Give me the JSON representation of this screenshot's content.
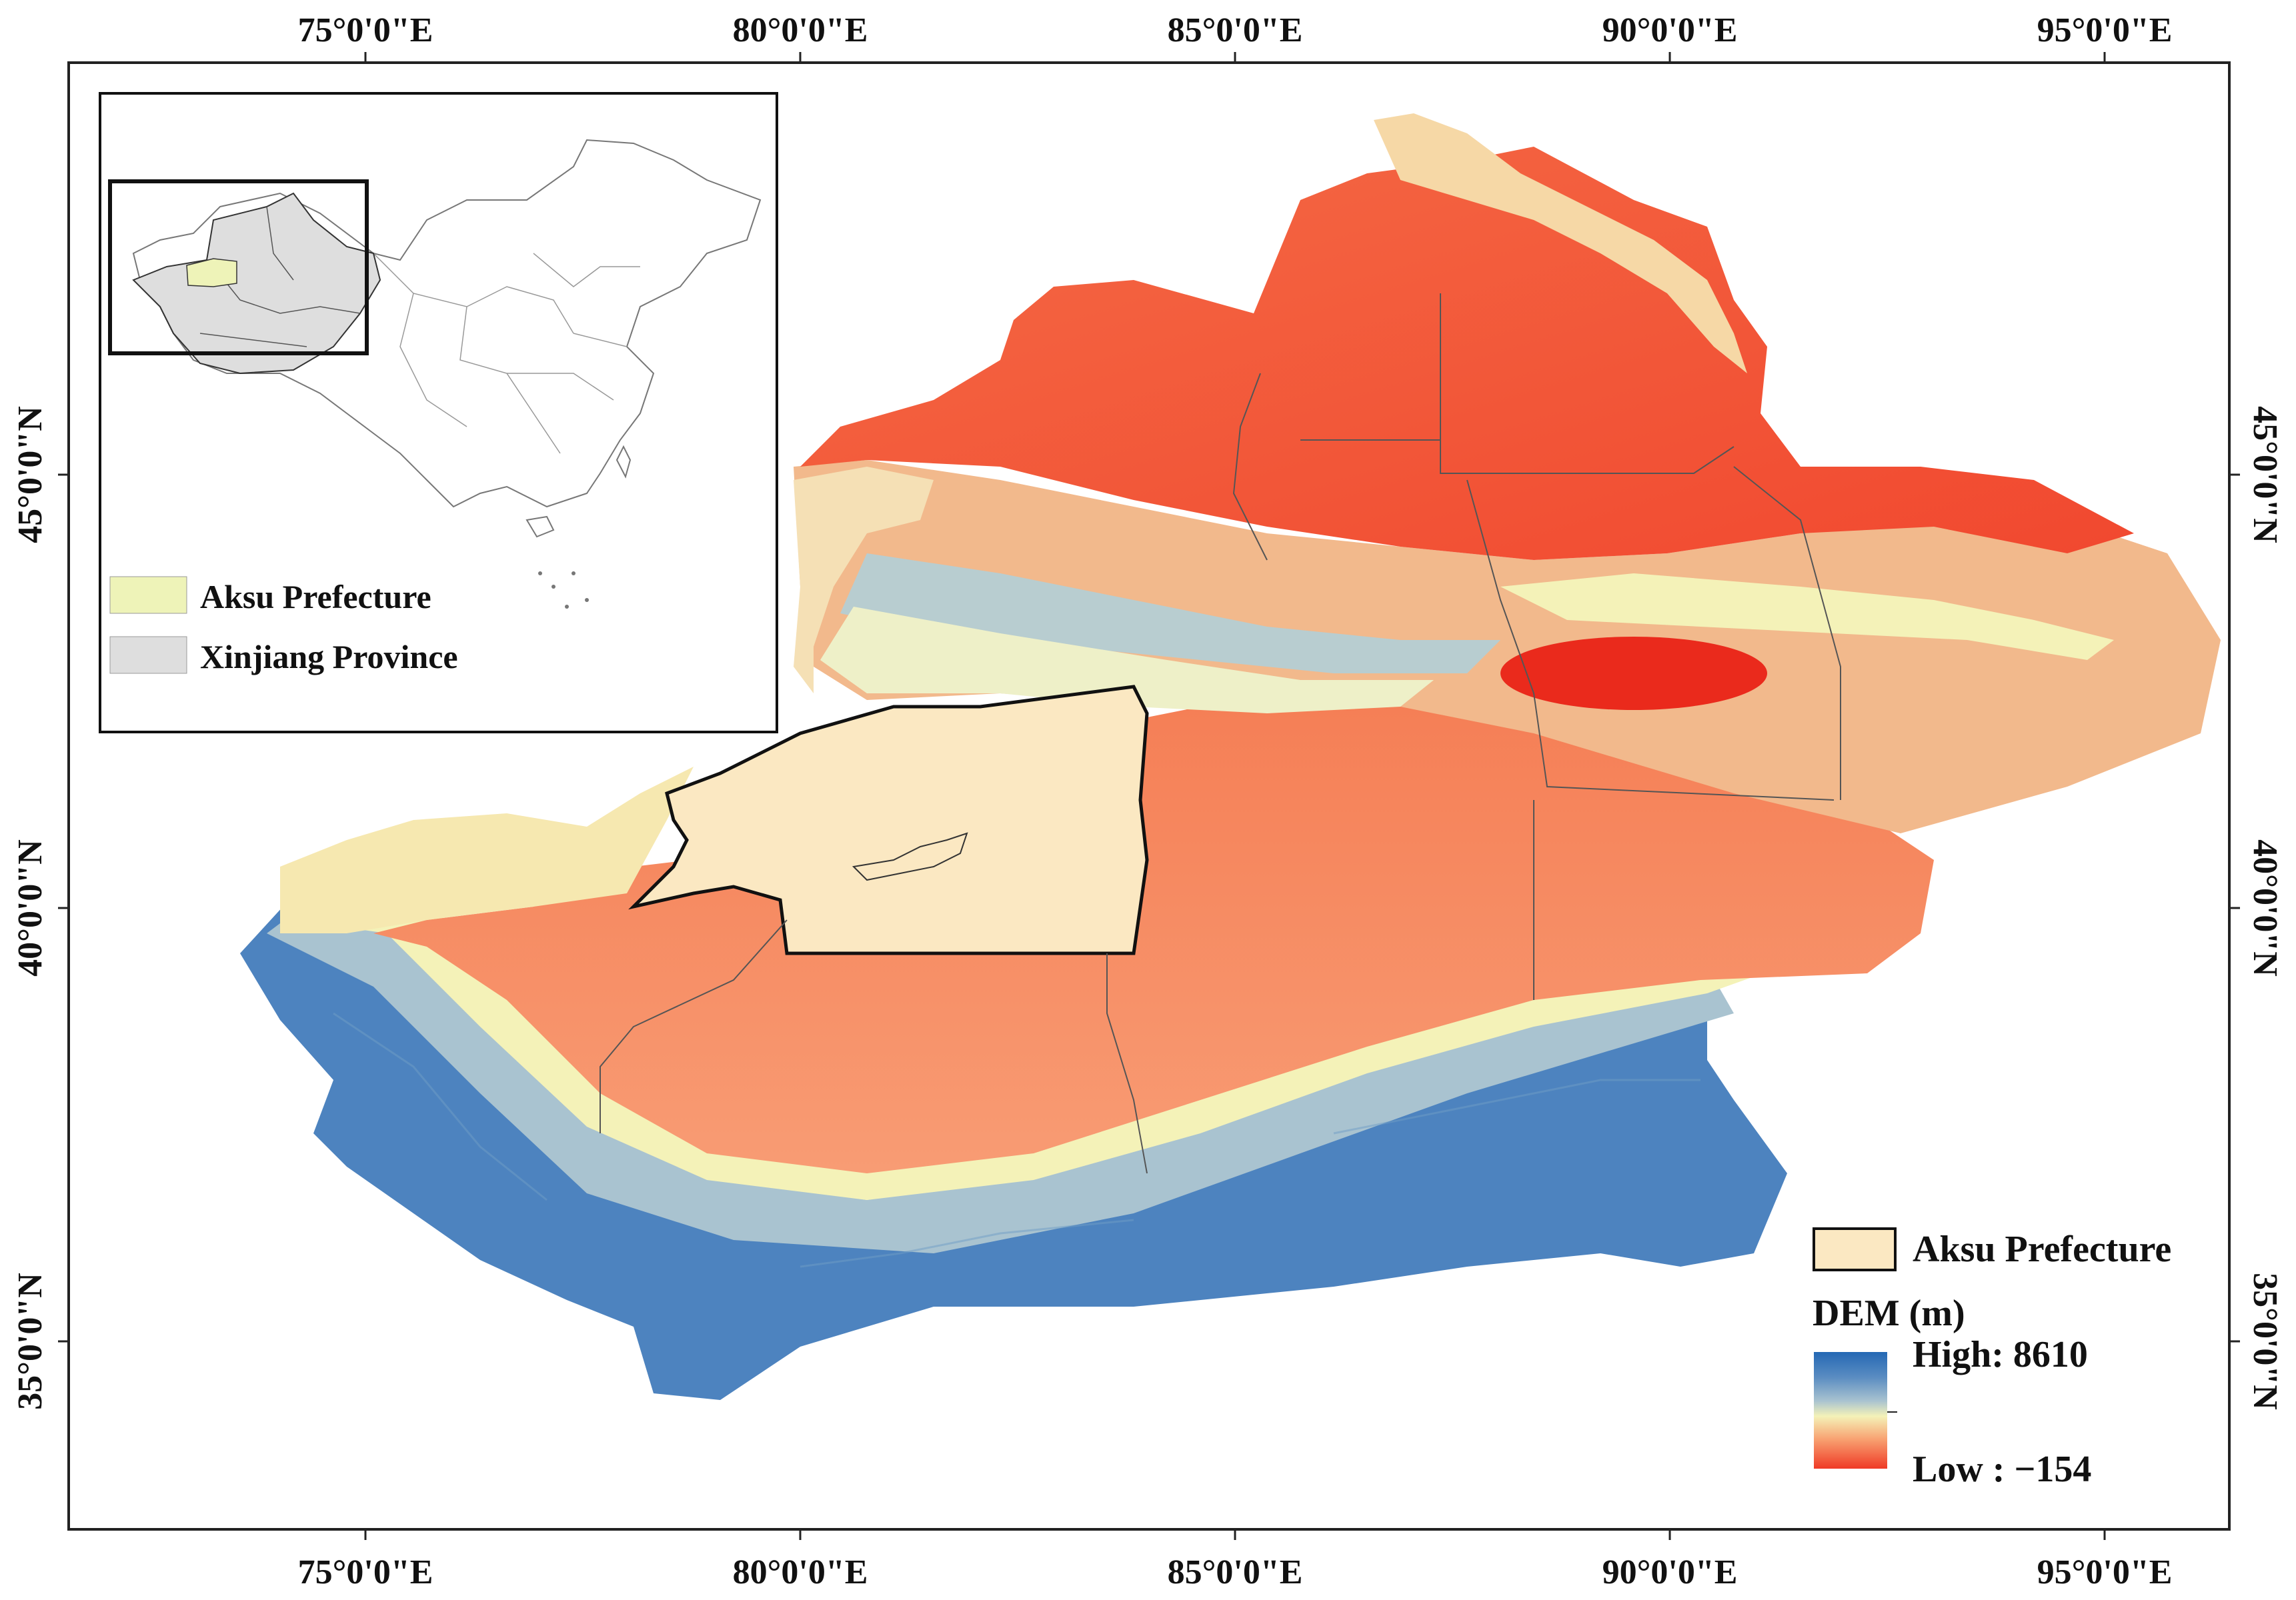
{
  "graticule": {
    "top_labels": [
      "75°0'0\"E",
      "80°0'0\"E",
      "85°0'0\"E",
      "90°0'0\"E",
      "95°0'0\"E"
    ],
    "bottom_labels": [
      "75°0'0\"E",
      "80°0'0\"E",
      "85°0'0\"E",
      "90°0'0\"E",
      "95°0'0\"E"
    ],
    "left_labels": [
      "45°0'0\"N",
      "40°0'0\"N",
      "35°0'0\"N"
    ],
    "right_labels": [
      "45°0'0\"N",
      "40°0'0\"N",
      "35°0'0\"N"
    ]
  },
  "inset": {
    "legend": [
      {
        "label": "Aksu Prefecture",
        "color": "#eef3b8"
      },
      {
        "label": "Xinjiang Province",
        "color": "#dedede"
      }
    ]
  },
  "legend": {
    "aksu_label": "Aksu Prefecture",
    "aksu_color": "#fbe8c2",
    "dem_title": "DEM (m)",
    "high_label": "High: 8610",
    "low_label": "Low : −154",
    "ramp": [
      "#2468b4",
      "#5b8dc2",
      "#a9c3d0",
      "#f4f2b8",
      "#f8a070",
      "#ef3a26"
    ]
  }
}
